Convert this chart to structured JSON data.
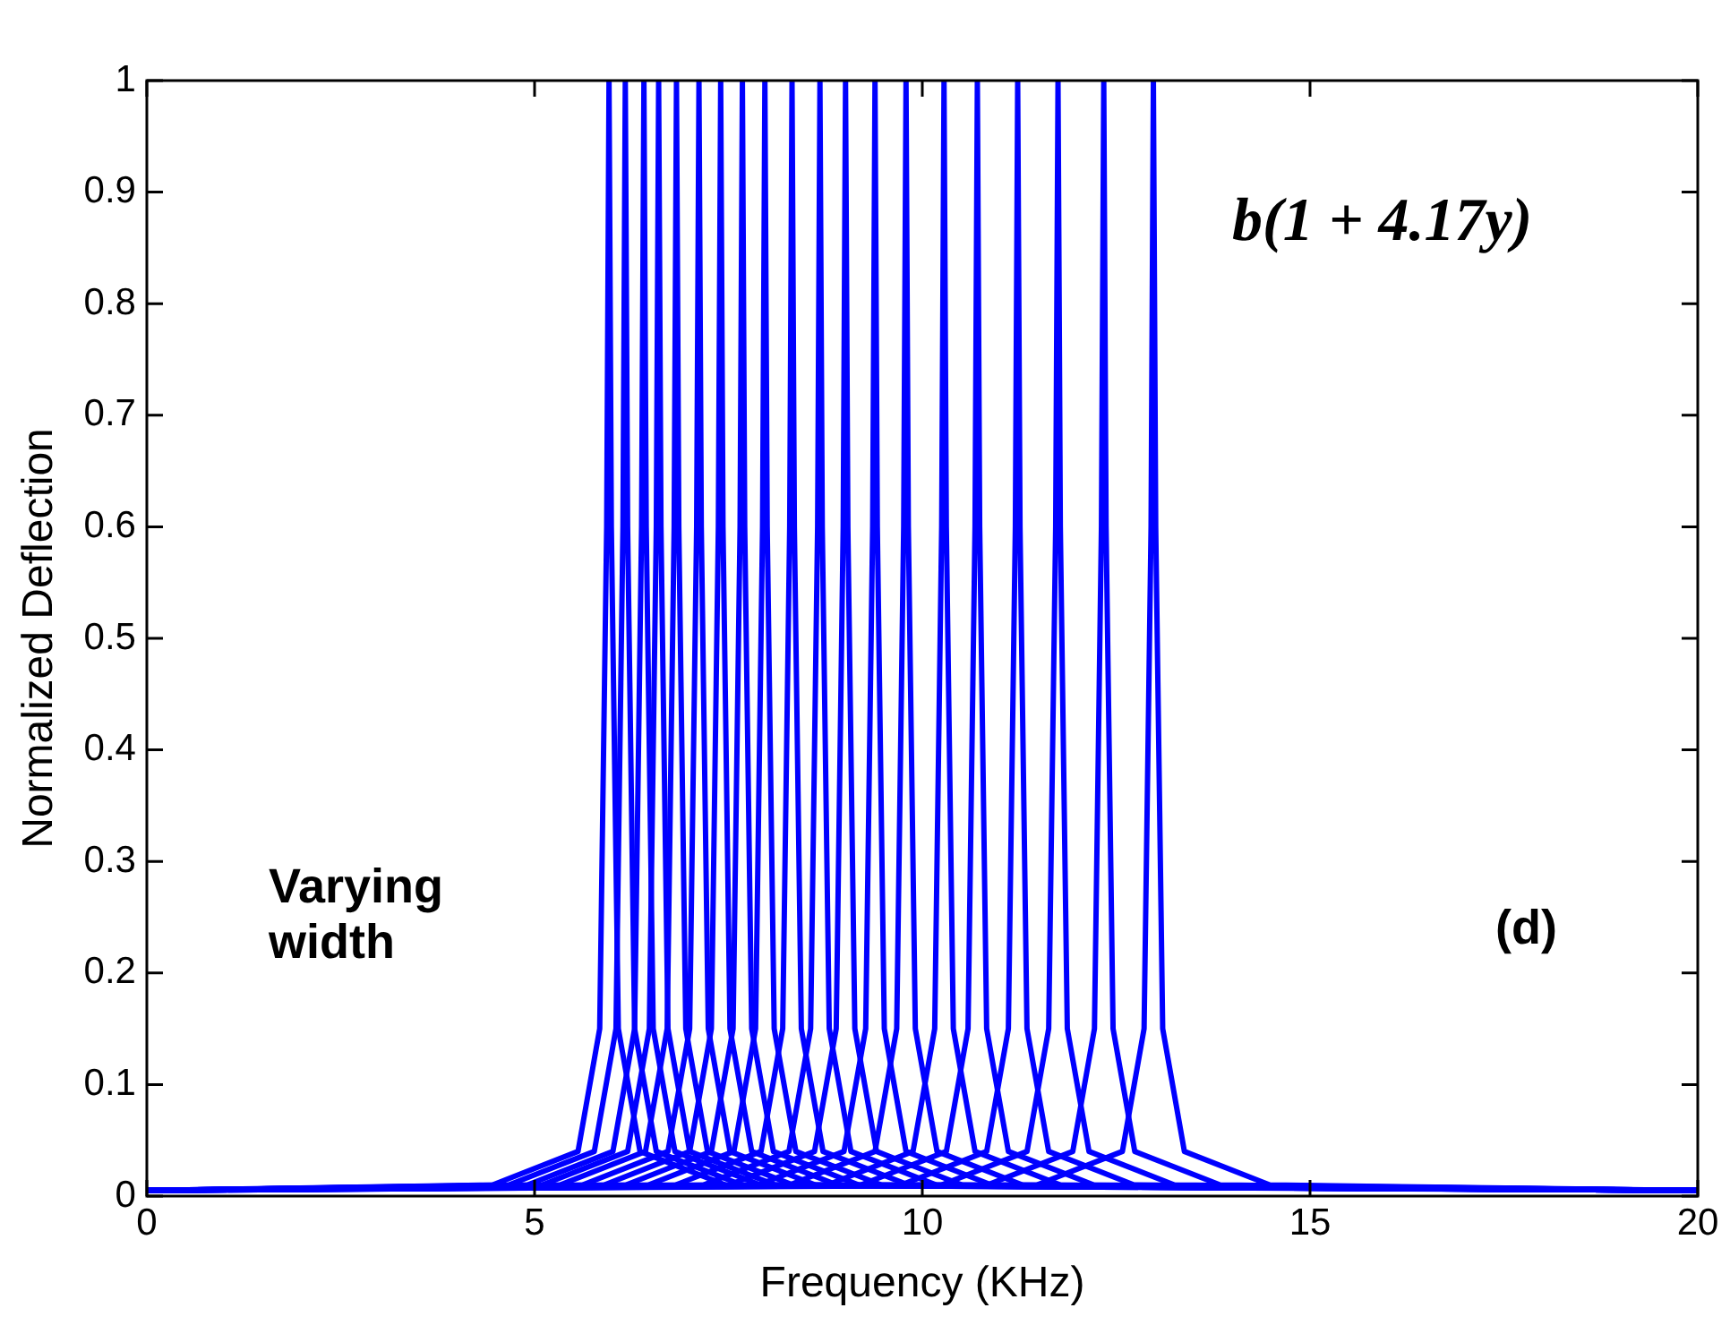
{
  "chart_data": {
    "type": "line",
    "xlabel": "Frequency (KHz)",
    "ylabel": "Normalized Deflection",
    "xlim": [
      0,
      20
    ],
    "xticks": [
      0,
      5,
      10,
      15,
      20
    ],
    "ylim": [
      0,
      1
    ],
    "yticks": [
      0,
      0.1,
      0.2,
      0.3,
      0.4,
      0.5,
      0.6,
      0.7,
      0.8,
      0.9,
      1
    ],
    "grid": false,
    "legend": false,
    "marker": "none",
    "line_style": "solid",
    "annotations": [
      "b(1 + 4.17y)",
      "Varying width",
      "(d)"
    ],
    "series": [
      {
        "color": "#0000ff",
        "x": [
          0,
          4.46,
          5.56,
          5.84,
          5.93,
          5.96,
          5.99,
          6.08,
          6.36,
          7.46,
          20
        ],
        "values": [
          0.005,
          0.01,
          0.04,
          0.15,
          0.6,
          1,
          0.6,
          0.15,
          0.04,
          0.01,
          0.005
        ]
      },
      {
        "color": "#0000ff",
        "x": [
          0,
          4.67,
          5.77,
          6.05,
          6.14,
          6.17,
          6.2,
          6.29,
          6.57,
          7.67,
          20
        ],
        "values": [
          0.005,
          0.01,
          0.04,
          0.15,
          0.6,
          1,
          0.6,
          0.15,
          0.04,
          0.01,
          0.005
        ]
      },
      {
        "color": "#0000ff",
        "x": [
          0,
          4.91,
          6.01,
          6.29,
          6.38,
          6.41,
          6.44,
          6.53,
          6.81,
          7.91,
          20
        ],
        "values": [
          0.005,
          0.01,
          0.04,
          0.15,
          0.6,
          1,
          0.6,
          0.15,
          0.04,
          0.01,
          0.005
        ]
      },
      {
        "color": "#0000ff",
        "x": [
          0,
          5.1,
          6.2,
          6.48,
          6.57,
          6.6,
          6.63,
          6.72,
          7,
          8.1,
          20
        ],
        "values": [
          0.005,
          0.01,
          0.04,
          0.15,
          0.6,
          1,
          0.6,
          0.15,
          0.04,
          0.01,
          0.005
        ]
      },
      {
        "color": "#0000ff",
        "x": [
          0,
          5.33,
          6.43,
          6.71,
          6.8,
          6.83,
          6.86,
          6.95,
          7.23,
          8.33,
          20
        ],
        "values": [
          0.005,
          0.01,
          0.04,
          0.15,
          0.6,
          1,
          0.6,
          0.15,
          0.04,
          0.01,
          0.005
        ]
      },
      {
        "color": "#0000ff",
        "x": [
          0,
          5.62,
          6.72,
          7,
          7.09,
          7.12,
          7.15,
          7.24,
          7.52,
          8.62,
          20
        ],
        "values": [
          0.005,
          0.01,
          0.04,
          0.15,
          0.6,
          1,
          0.6,
          0.15,
          0.04,
          0.01,
          0.005
        ]
      },
      {
        "color": "#0000ff",
        "x": [
          0,
          5.9,
          7,
          7.28,
          7.37,
          7.4,
          7.43,
          7.52,
          7.8,
          8.9,
          20
        ],
        "values": [
          0.005,
          0.01,
          0.04,
          0.15,
          0.6,
          1,
          0.6,
          0.15,
          0.04,
          0.01,
          0.005
        ]
      },
      {
        "color": "#0000ff",
        "x": [
          0,
          6.18,
          7.28,
          7.56,
          7.65,
          7.68,
          7.71,
          7.8,
          8.08,
          9.18,
          20
        ],
        "values": [
          0.005,
          0.01,
          0.04,
          0.15,
          0.6,
          1,
          0.6,
          0.15,
          0.04,
          0.01,
          0.005
        ]
      },
      {
        "color": "#0000ff",
        "x": [
          0,
          6.47,
          7.57,
          7.85,
          7.94,
          7.97,
          8,
          8.09,
          8.37,
          9.47,
          20
        ],
        "values": [
          0.005,
          0.01,
          0.04,
          0.15,
          0.6,
          1,
          0.6,
          0.15,
          0.04,
          0.01,
          0.005
        ]
      },
      {
        "color": "#0000ff",
        "x": [
          0,
          6.82,
          7.92,
          8.2,
          8.29,
          8.32,
          8.35,
          8.44,
          8.72,
          9.82,
          20
        ],
        "values": [
          0.005,
          0.01,
          0.04,
          0.15,
          0.6,
          1,
          0.6,
          0.15,
          0.04,
          0.01,
          0.005
        ]
      },
      {
        "color": "#0000ff",
        "x": [
          0,
          7.18,
          8.28,
          8.56,
          8.65,
          8.68,
          8.71,
          8.8,
          9.08,
          10.18,
          20
        ],
        "values": [
          0.005,
          0.01,
          0.04,
          0.15,
          0.6,
          1,
          0.6,
          0.15,
          0.04,
          0.01,
          0.005
        ]
      },
      {
        "color": "#0000ff",
        "x": [
          0,
          7.51,
          8.61,
          8.89,
          8.98,
          9.01,
          9.04,
          9.13,
          9.41,
          10.51,
          20
        ],
        "values": [
          0.005,
          0.01,
          0.04,
          0.15,
          0.6,
          1,
          0.6,
          0.15,
          0.04,
          0.01,
          0.005
        ]
      },
      {
        "color": "#0000ff",
        "x": [
          0,
          7.89,
          8.99,
          9.27,
          9.36,
          9.39,
          9.42,
          9.51,
          9.79,
          10.89,
          20
        ],
        "values": [
          0.005,
          0.01,
          0.04,
          0.15,
          0.6,
          1,
          0.6,
          0.15,
          0.04,
          0.01,
          0.005
        ]
      },
      {
        "color": "#0000ff",
        "x": [
          0,
          8.29,
          9.39,
          9.67,
          9.76,
          9.79,
          9.82,
          9.91,
          10.19,
          11.29,
          20
        ],
        "values": [
          0.005,
          0.01,
          0.04,
          0.15,
          0.6,
          1,
          0.6,
          0.15,
          0.04,
          0.01,
          0.005
        ]
      },
      {
        "color": "#0000ff",
        "x": [
          0,
          8.78,
          9.88,
          10.16,
          10.25,
          10.28,
          10.31,
          10.4,
          10.68,
          11.78,
          20
        ],
        "values": [
          0.005,
          0.01,
          0.04,
          0.15,
          0.6,
          1,
          0.6,
          0.15,
          0.04,
          0.01,
          0.005
        ]
      },
      {
        "color": "#0000ff",
        "x": [
          0,
          9.21,
          10.31,
          10.59,
          10.68,
          10.71,
          10.74,
          10.83,
          11.11,
          12.21,
          20
        ],
        "values": [
          0.005,
          0.01,
          0.04,
          0.15,
          0.6,
          1,
          0.6,
          0.15,
          0.04,
          0.01,
          0.005
        ]
      },
      {
        "color": "#0000ff",
        "x": [
          0,
          9.73,
          10.83,
          11.11,
          11.2,
          11.23,
          11.26,
          11.35,
          11.63,
          12.73,
          20
        ],
        "values": [
          0.005,
          0.01,
          0.04,
          0.15,
          0.6,
          1,
          0.6,
          0.15,
          0.04,
          0.01,
          0.005
        ]
      },
      {
        "color": "#0000ff",
        "x": [
          0,
          10.25,
          11.35,
          11.63,
          11.72,
          11.75,
          11.78,
          11.87,
          12.15,
          13.25,
          20
        ],
        "values": [
          0.005,
          0.01,
          0.04,
          0.15,
          0.6,
          1,
          0.6,
          0.15,
          0.04,
          0.01,
          0.005
        ]
      },
      {
        "color": "#0000ff",
        "x": [
          0,
          10.84,
          11.94,
          12.22,
          12.31,
          12.34,
          12.37,
          12.46,
          12.74,
          13.84,
          20
        ],
        "values": [
          0.005,
          0.01,
          0.04,
          0.15,
          0.6,
          1,
          0.6,
          0.15,
          0.04,
          0.01,
          0.005
        ]
      },
      {
        "color": "#0000ff",
        "x": [
          0,
          11.48,
          12.58,
          12.86,
          12.95,
          12.98,
          13.01,
          13.1,
          13.38,
          14.48,
          20
        ],
        "values": [
          0.005,
          0.01,
          0.04,
          0.15,
          0.6,
          1,
          0.6,
          0.15,
          0.04,
          0.01,
          0.005
        ]
      }
    ]
  }
}
